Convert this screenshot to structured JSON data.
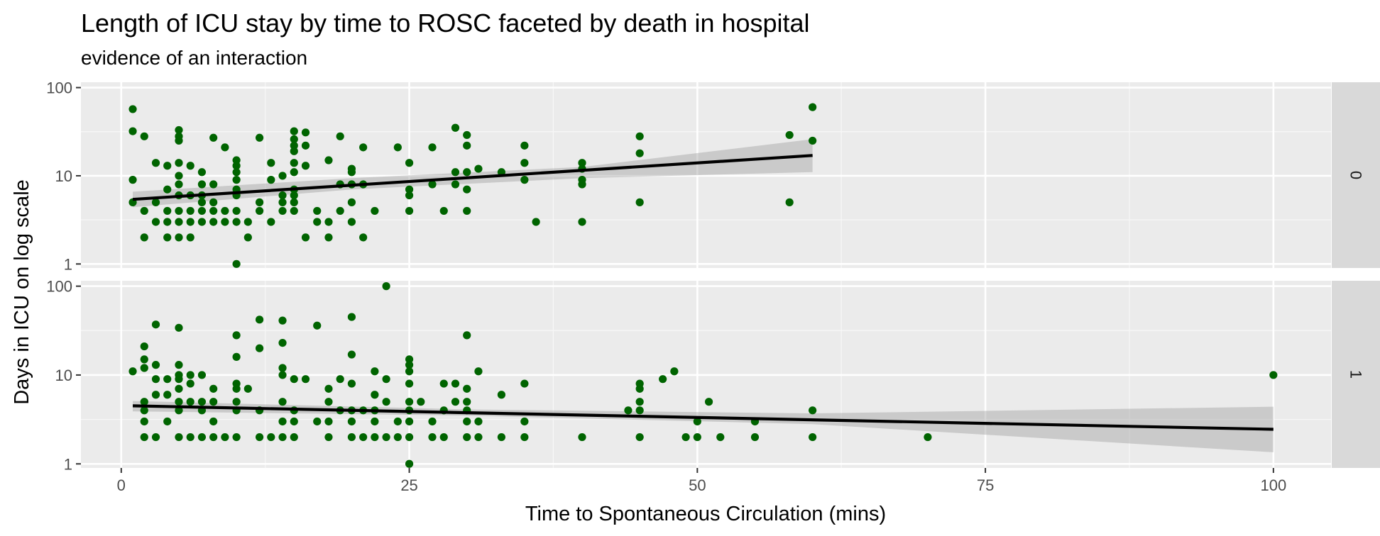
{
  "chart_data": {
    "type": "scatter",
    "title": "Length of ICU stay by time to ROSC faceted by death in hospital",
    "subtitle": "evidence of an interaction",
    "xlabel": "Time to Spontaneous Circulation (mins)",
    "ylabel": "Days in ICU on log scale",
    "x_ticks": [
      0,
      25,
      50,
      75,
      100
    ],
    "y_ticks": [
      1,
      10,
      100
    ],
    "xlim": [
      -3.5,
      105
    ],
    "ylim": [
      0.9,
      115
    ],
    "y_scale": "log10",
    "grid": true,
    "point_color": "#006400",
    "facet_variable": "death in hospital",
    "facets": [
      {
        "label": "0",
        "points": [
          [
            1,
            57
          ],
          [
            1,
            32
          ],
          [
            1,
            9
          ],
          [
            1,
            5
          ],
          [
            2,
            28
          ],
          [
            2,
            4
          ],
          [
            2,
            2
          ],
          [
            3,
            14
          ],
          [
            3,
            5
          ],
          [
            3,
            3
          ],
          [
            4,
            13
          ],
          [
            4,
            7
          ],
          [
            4,
            4
          ],
          [
            4,
            3
          ],
          [
            4,
            2
          ],
          [
            5,
            33
          ],
          [
            5,
            28
          ],
          [
            5,
            25
          ],
          [
            5,
            14
          ],
          [
            5,
            10
          ],
          [
            5,
            8
          ],
          [
            5,
            6
          ],
          [
            5,
            4
          ],
          [
            5,
            3
          ],
          [
            5,
            2
          ],
          [
            6,
            13
          ],
          [
            6,
            6
          ],
          [
            6,
            4
          ],
          [
            6,
            3
          ],
          [
            6,
            2
          ],
          [
            7,
            11
          ],
          [
            7,
            8
          ],
          [
            7,
            6
          ],
          [
            7,
            5
          ],
          [
            7,
            4
          ],
          [
            7,
            3
          ],
          [
            8,
            27
          ],
          [
            8,
            8
          ],
          [
            8,
            5
          ],
          [
            8,
            4
          ],
          [
            8,
            3
          ],
          [
            9,
            21
          ],
          [
            9,
            4
          ],
          [
            9,
            3
          ],
          [
            10,
            15
          ],
          [
            10,
            13
          ],
          [
            10,
            11
          ],
          [
            10,
            9
          ],
          [
            10,
            7
          ],
          [
            10,
            6
          ],
          [
            10,
            4
          ],
          [
            10,
            3
          ],
          [
            10,
            1
          ],
          [
            11,
            3
          ],
          [
            11,
            2
          ],
          [
            12,
            27
          ],
          [
            12,
            5
          ],
          [
            12,
            4
          ],
          [
            13,
            14
          ],
          [
            13,
            9
          ],
          [
            13,
            3
          ],
          [
            14,
            10
          ],
          [
            14,
            6
          ],
          [
            14,
            5
          ],
          [
            14,
            4
          ],
          [
            15,
            32
          ],
          [
            15,
            26
          ],
          [
            15,
            22
          ],
          [
            15,
            19
          ],
          [
            15,
            14
          ],
          [
            15,
            11
          ],
          [
            15,
            7
          ],
          [
            15,
            6
          ],
          [
            15,
            5
          ],
          [
            15,
            4
          ],
          [
            16,
            31
          ],
          [
            16,
            22
          ],
          [
            16,
            13
          ],
          [
            16,
            2
          ],
          [
            17,
            4
          ],
          [
            17,
            3
          ],
          [
            18,
            15
          ],
          [
            18,
            3
          ],
          [
            18,
            2
          ],
          [
            19,
            28
          ],
          [
            19,
            8
          ],
          [
            19,
            4
          ],
          [
            20,
            12
          ],
          [
            20,
            11
          ],
          [
            20,
            8
          ],
          [
            20,
            5
          ],
          [
            20,
            3
          ],
          [
            21,
            21
          ],
          [
            21,
            8
          ],
          [
            21,
            2
          ],
          [
            22,
            4
          ],
          [
            24,
            21
          ],
          [
            25,
            14
          ],
          [
            25,
            7
          ],
          [
            25,
            6
          ],
          [
            25,
            4
          ],
          [
            27,
            21
          ],
          [
            27,
            8
          ],
          [
            28,
            4
          ],
          [
            29,
            35
          ],
          [
            29,
            11
          ],
          [
            29,
            8
          ],
          [
            30,
            29
          ],
          [
            30,
            22
          ],
          [
            30,
            11
          ],
          [
            30,
            7
          ],
          [
            30,
            4
          ],
          [
            31,
            12
          ],
          [
            33,
            11
          ],
          [
            35,
            22
          ],
          [
            35,
            14
          ],
          [
            35,
            9
          ],
          [
            36,
            3
          ],
          [
            40,
            14
          ],
          [
            40,
            12
          ],
          [
            40,
            9
          ],
          [
            40,
            8
          ],
          [
            40,
            3
          ],
          [
            45,
            28
          ],
          [
            45,
            18
          ],
          [
            45,
            5
          ],
          [
            58,
            29
          ],
          [
            58,
            5
          ],
          [
            60,
            60
          ],
          [
            60,
            25
          ]
        ],
        "trend": {
          "x": [
            1,
            60
          ],
          "y": [
            5.4,
            17
          ]
        },
        "band": {
          "x": [
            1,
            20,
            40,
            60
          ],
          "upper": [
            6.6,
            9.4,
            12.6,
            26
          ],
          "lower": [
            4.4,
            7.0,
            9.4,
            11
          ]
        }
      },
      {
        "label": "1",
        "points": [
          [
            1,
            11
          ],
          [
            2,
            21
          ],
          [
            2,
            15
          ],
          [
            2,
            12
          ],
          [
            2,
            5
          ],
          [
            2,
            4
          ],
          [
            2,
            3
          ],
          [
            2,
            2
          ],
          [
            3,
            37
          ],
          [
            3,
            13
          ],
          [
            3,
            9
          ],
          [
            3,
            6
          ],
          [
            3,
            2
          ],
          [
            4,
            9
          ],
          [
            4,
            6
          ],
          [
            4,
            3
          ],
          [
            5,
            34
          ],
          [
            5,
            13
          ],
          [
            5,
            10
          ],
          [
            5,
            9
          ],
          [
            5,
            7
          ],
          [
            5,
            5
          ],
          [
            5,
            4
          ],
          [
            5,
            2
          ],
          [
            6,
            10
          ],
          [
            6,
            8
          ],
          [
            6,
            5
          ],
          [
            6,
            2
          ],
          [
            7,
            10
          ],
          [
            7,
            5
          ],
          [
            7,
            4
          ],
          [
            7,
            2
          ],
          [
            8,
            7
          ],
          [
            8,
            5
          ],
          [
            8,
            3
          ],
          [
            8,
            2
          ],
          [
            9,
            2
          ],
          [
            10,
            28
          ],
          [
            10,
            16
          ],
          [
            10,
            8
          ],
          [
            10,
            7
          ],
          [
            10,
            5
          ],
          [
            10,
            4
          ],
          [
            10,
            2
          ],
          [
            11,
            7
          ],
          [
            12,
            42
          ],
          [
            12,
            20
          ],
          [
            12,
            4
          ],
          [
            12,
            2
          ],
          [
            13,
            2
          ],
          [
            14,
            41
          ],
          [
            14,
            23
          ],
          [
            14,
            12
          ],
          [
            14,
            10
          ],
          [
            14,
            5
          ],
          [
            14,
            3
          ],
          [
            14,
            2
          ],
          [
            15,
            9
          ],
          [
            15,
            4
          ],
          [
            15,
            3
          ],
          [
            15,
            2
          ],
          [
            16,
            9
          ],
          [
            17,
            36
          ],
          [
            17,
            3
          ],
          [
            18,
            7
          ],
          [
            18,
            5
          ],
          [
            18,
            3
          ],
          [
            18,
            2
          ],
          [
            19,
            9
          ],
          [
            19,
            4
          ],
          [
            20,
            45
          ],
          [
            20,
            17
          ],
          [
            20,
            8
          ],
          [
            20,
            4
          ],
          [
            20,
            3
          ],
          [
            20,
            2
          ],
          [
            21,
            4
          ],
          [
            21,
            2
          ],
          [
            22,
            11
          ],
          [
            22,
            6
          ],
          [
            22,
            4
          ],
          [
            22,
            3
          ],
          [
            22,
            2
          ],
          [
            23,
            100
          ],
          [
            23,
            9
          ],
          [
            23,
            5
          ],
          [
            23,
            2
          ],
          [
            24,
            3
          ],
          [
            24,
            2
          ],
          [
            25,
            15
          ],
          [
            25,
            13
          ],
          [
            25,
            11
          ],
          [
            25,
            8
          ],
          [
            25,
            5
          ],
          [
            25,
            4
          ],
          [
            25,
            3
          ],
          [
            25,
            2
          ],
          [
            25,
            1
          ],
          [
            26,
            5
          ],
          [
            27,
            3
          ],
          [
            27,
            2
          ],
          [
            28,
            8
          ],
          [
            28,
            4
          ],
          [
            28,
            2
          ],
          [
            29,
            8
          ],
          [
            29,
            5
          ],
          [
            30,
            28
          ],
          [
            30,
            7
          ],
          [
            30,
            5
          ],
          [
            30,
            4
          ],
          [
            30,
            3
          ],
          [
            30,
            2
          ],
          [
            31,
            11
          ],
          [
            31,
            3
          ],
          [
            31,
            2
          ],
          [
            33,
            6
          ],
          [
            33,
            2
          ],
          [
            35,
            8
          ],
          [
            35,
            3
          ],
          [
            35,
            2
          ],
          [
            40,
            2
          ],
          [
            44,
            4
          ],
          [
            45,
            8
          ],
          [
            45,
            7
          ],
          [
            45,
            5
          ],
          [
            45,
            4
          ],
          [
            45,
            2
          ],
          [
            47,
            9
          ],
          [
            48,
            11
          ],
          [
            49,
            2
          ],
          [
            50,
            3
          ],
          [
            50,
            2
          ],
          [
            51,
            5
          ],
          [
            52,
            2
          ],
          [
            55,
            3
          ],
          [
            55,
            2
          ],
          [
            60,
            4
          ],
          [
            60,
            2
          ],
          [
            70,
            2
          ],
          [
            100,
            10
          ]
        ],
        "trend": {
          "x": [
            1,
            100
          ],
          "y": [
            4.5,
            2.45
          ]
        },
        "band": {
          "x": [
            1,
            30,
            60,
            100
          ],
          "upper": [
            5.1,
            4.1,
            3.7,
            4.4
          ],
          "lower": [
            3.9,
            3.5,
            2.8,
            1.35
          ]
        }
      }
    ]
  }
}
